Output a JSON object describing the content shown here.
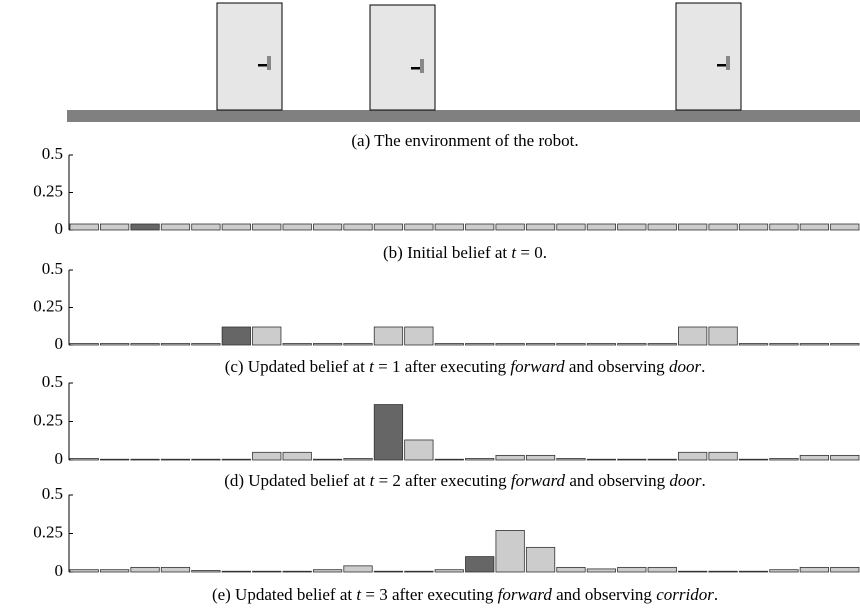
{
  "environment": {
    "caption": [
      "(a) The environment of the robot."
    ]
  },
  "chart_data": [
    {
      "type": "bar",
      "caption": [
        "(b) Initial belief at ",
        "t",
        " = 0."
      ],
      "values": [
        0.04,
        0.04,
        0.04,
        0.04,
        0.04,
        0.04,
        0.04,
        0.04,
        0.04,
        0.04,
        0.04,
        0.04,
        0.04,
        0.04,
        0.04,
        0.04,
        0.04,
        0.04,
        0.04,
        0.04,
        0.04,
        0.04,
        0.04,
        0.04,
        0.04,
        0.04
      ],
      "color": "#cccccc",
      "highlight_color": "#666666",
      "highlight_index": 2,
      "ylim": [
        0,
        0.5
      ],
      "yticks": [
        0,
        0.25,
        0.5
      ]
    },
    {
      "type": "bar",
      "caption": [
        "(c) Updated belief at ",
        "t",
        " = 1 after executing ",
        "forward",
        " and observing ",
        "door",
        "."
      ],
      "values": [
        0.01,
        0.01,
        0.01,
        0.01,
        0.01,
        0.12,
        0.12,
        0.01,
        0.01,
        0.01,
        0.12,
        0.12,
        0.01,
        0.01,
        0.01,
        0.01,
        0.01,
        0.01,
        0.01,
        0.01,
        0.12,
        0.12,
        0.01,
        0.01,
        0.01,
        0.01
      ],
      "color": "#cccccc",
      "highlight_color": "#666666",
      "highlight_index": 5,
      "ylim": [
        0,
        0.5
      ],
      "yticks": [
        0,
        0.25,
        0.5
      ]
    },
    {
      "type": "bar",
      "caption": [
        "(d) Updated belief at ",
        "t",
        " = 2 after executing ",
        "forward",
        " and observing ",
        "door",
        "."
      ],
      "values": [
        0.01,
        0.005,
        0.005,
        0.005,
        0.005,
        0.005,
        0.05,
        0.05,
        0.005,
        0.01,
        0.36,
        0.13,
        0.005,
        0.01,
        0.03,
        0.03,
        0.01,
        0.005,
        0.005,
        0.005,
        0.05,
        0.05,
        0.005,
        0.01,
        0.03,
        0.03
      ],
      "color": "#cccccc",
      "highlight_color": "#666666",
      "highlight_index": 10,
      "ylim": [
        0,
        0.5
      ],
      "yticks": [
        0,
        0.25,
        0.5
      ]
    },
    {
      "type": "bar",
      "caption": [
        "(e) Updated belief at ",
        "t",
        " = 3 after executing ",
        "forward",
        " and observing ",
        "corridor",
        "."
      ],
      "values": [
        0.015,
        0.015,
        0.03,
        0.03,
        0.01,
        0.005,
        0.005,
        0.005,
        0.015,
        0.04,
        0.005,
        0.005,
        0.015,
        0.1,
        0.27,
        0.16,
        0.03,
        0.02,
        0.03,
        0.03,
        0.005,
        0.005,
        0.005,
        0.015,
        0.03,
        0.03
      ],
      "color": "#cccccc",
      "highlight_color": "#666666",
      "highlight_index": 13,
      "ylim": [
        0,
        0.5
      ],
      "yticks": [
        0,
        0.25,
        0.5
      ]
    }
  ]
}
